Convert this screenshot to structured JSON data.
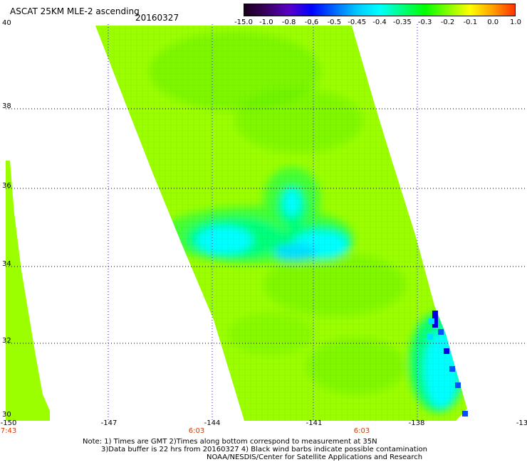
{
  "header": {
    "title": "ASCAT 25KM MLE-2 ascending",
    "date": "20160327"
  },
  "colorbar": {
    "labels": [
      "-15.0",
      "-1.0",
      "-0.8",
      "-0.6",
      "-0.5",
      "-0.45",
      "-0.4",
      "-0.35",
      "-0.3",
      "-0.2",
      "-0.1",
      "0.0",
      "1.0"
    ],
    "colors": [
      "#1a001a",
      "#3a0060",
      "#5a00c8",
      "#0000ff",
      "#0066ff",
      "#00c8ff",
      "#00ffff",
      "#00ff80",
      "#00ff00",
      "#80ff00",
      "#ffff00",
      "#ffa000",
      "#ff3000"
    ]
  },
  "map": {
    "lat_labels": [
      "40",
      "38",
      "36",
      "34",
      "32",
      "30"
    ],
    "lon_labels": [
      "-150",
      "-147",
      "-144",
      "-141",
      "-138",
      "-13"
    ],
    "time_labels": [
      "7:43",
      "6:03",
      "6:03"
    ],
    "colors": {
      "base": "#9cff00",
      "green": "#60f000",
      "green_dark": "#3cff3c",
      "light_green": "#00ff80",
      "cyan": "#00ffff",
      "aqua": "#00e0ff",
      "blue": "#0050ff",
      "deep_blue": "#0000e0"
    }
  },
  "notes": {
    "line1": "Note: 1) Times are GMT 2)Times along bottom correspond to measurement at 35N",
    "line2": "3)Data buffer is 22 hrs from 20160327 4) Black wind barbs indicate possible contamination",
    "line3": "NOAA/NESDIS/Center for Satellite Applications and Research"
  }
}
